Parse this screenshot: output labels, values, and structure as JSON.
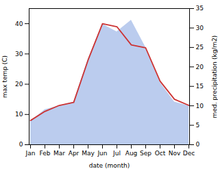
{
  "chart_data": {
    "type": "line",
    "categories": [
      "Jan",
      "Feb",
      "Mar",
      "Apr",
      "May",
      "Jun",
      "Jul",
      "Aug",
      "Sep",
      "Oct",
      "Nov",
      "Dec"
    ],
    "xlabel": "date (month)",
    "ylabel": "max temp (C)",
    "y2label": "med. precipitation (kg/m2)",
    "ylim": [
      0,
      45
    ],
    "yticks": [
      0,
      10,
      20,
      30,
      40
    ],
    "y2lim": [
      0,
      35
    ],
    "y2ticks": [
      0,
      5,
      10,
      15,
      20,
      25,
      30,
      35
    ],
    "grid": false,
    "series": [
      {
        "type": "area",
        "axis": "y2",
        "color": "#bbccee",
        "values": [
          6,
          9,
          10,
          11,
          22,
          31,
          29,
          32,
          25,
          16,
          11,
          10
        ]
      },
      {
        "type": "line",
        "color": "#cc3333",
        "values": [
          8,
          11,
          13,
          14,
          28,
          40,
          39,
          33,
          32,
          21,
          15,
          13
        ]
      }
    ]
  }
}
